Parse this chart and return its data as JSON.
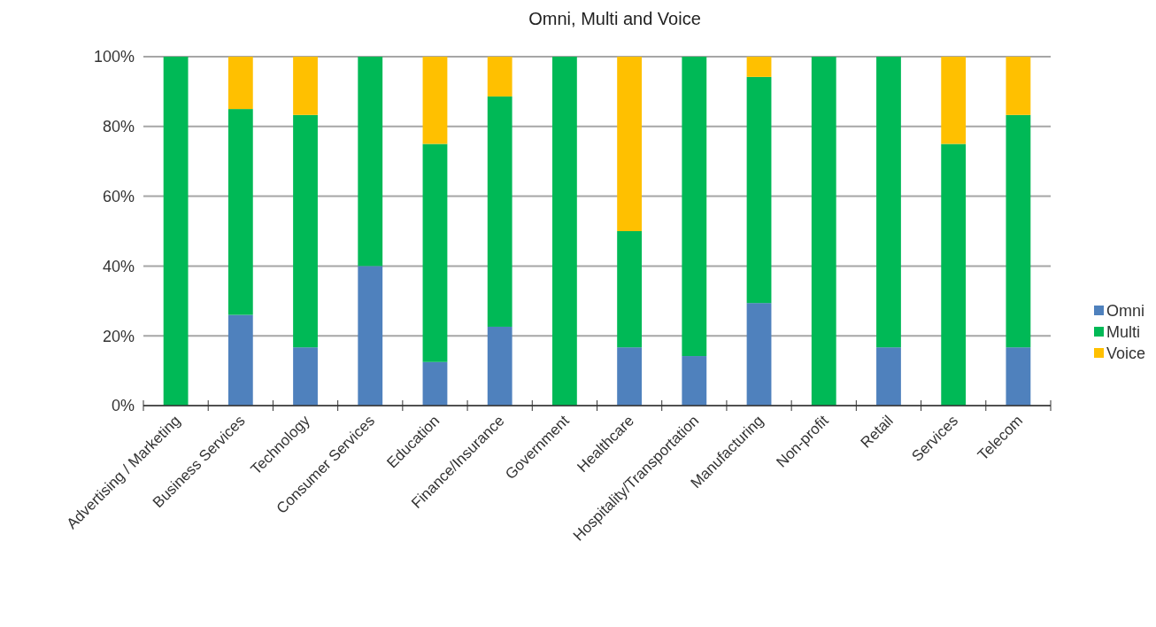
{
  "chart_data": {
    "type": "bar",
    "title": "Omni, Multi and Voice",
    "stacked": true,
    "grid": "y",
    "legend": "right",
    "categories": [
      "Advertising / Marketing",
      "Business Services",
      "Technology",
      "Consumer Services",
      "Education",
      "Finance/Insurance",
      "Government",
      "Healthcare",
      "Hospitality/Transportation",
      "Manufacturing",
      "Non-profit",
      "Retail",
      "Services",
      "Telecom"
    ],
    "ylim": [
      0,
      100
    ],
    "yticks": [
      {
        "value": 0,
        "label": "0%"
      },
      {
        "value": 20,
        "label": "20%"
      },
      {
        "value": 40,
        "label": "40%"
      },
      {
        "value": 60,
        "label": "60%"
      },
      {
        "value": 80,
        "label": "80%"
      },
      {
        "value": 100,
        "label": "100%"
      }
    ],
    "series": [
      {
        "name": "Omni",
        "color": "#4f81bd",
        "values": [
          0,
          26,
          16.7,
          40,
          12.5,
          22.6,
          0,
          16.7,
          14.2,
          29.4,
          0,
          16.7,
          0,
          16.7
        ]
      },
      {
        "name": "Multi",
        "color": "#00b956",
        "values": [
          100,
          59,
          66.6,
          60,
          62.5,
          66,
          100,
          33.3,
          85.8,
          64.8,
          100,
          83.3,
          75,
          66.6
        ]
      },
      {
        "name": "Voice",
        "color": "#ffc000",
        "values": [
          0,
          15,
          16.7,
          0,
          25,
          11.4,
          0,
          50,
          0,
          5.8,
          0,
          0,
          25,
          16.7
        ]
      }
    ]
  }
}
